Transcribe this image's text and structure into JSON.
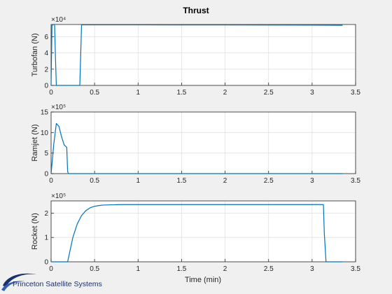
{
  "chart_data": {
    "type": "line",
    "title": "Thrust",
    "xlabel": "Time (min)",
    "colors": {
      "line": "#0072bd",
      "axes_bg": "#ffffff",
      "figure_bg": "#f0f0f0",
      "grid": "#e0e0e0"
    },
    "grid": true,
    "xlim": [
      0,
      3.5
    ],
    "xticks": [
      "0",
      "0.5",
      "1",
      "1.5",
      "2",
      "2.5",
      "3",
      "3.5"
    ],
    "subplots": [
      {
        "ylabel": "Turbofan (N)",
        "exponent_label": "×10⁴",
        "ylim": [
          0,
          7.5
        ],
        "yticks": [
          "0",
          "2",
          "4",
          "6"
        ],
        "series": [
          {
            "x": [
              0,
              0.01,
              0.02,
              0.03,
              0.04,
              0.05,
              0.06,
              0.07,
              0.33,
              0.35,
              0.5,
              1.0,
              2.0,
              3.0,
              3.35
            ],
            "y": [
              0,
              7.4,
              7.45,
              7.5,
              7.5,
              3.5,
              0,
              0,
              0,
              7.45,
              7.45,
              7.45,
              7.44,
              7.42,
              7.4
            ]
          }
        ]
      },
      {
        "ylabel": "Ramjet (N)",
        "exponent_label": "×10⁵",
        "ylim": [
          0,
          15
        ],
        "yticks": [
          "0",
          "5",
          "10",
          "15"
        ],
        "series": [
          {
            "x": [
              0,
              0.03,
              0.06,
              0.09,
              0.12,
              0.15,
              0.18,
              0.19,
              0.2,
              0.25,
              1.0,
              2.0,
              3.0,
              3.35
            ],
            "y": [
              0,
              7,
              12.2,
              11.5,
              9,
              7,
              6.4,
              0.5,
              0,
              0,
              0,
              0,
              0,
              0
            ]
          }
        ]
      },
      {
        "ylabel": "Rocket (N)",
        "exponent_label": "×10⁵",
        "ylim": [
          0,
          2.5
        ],
        "yticks": [
          "0",
          "1",
          "2"
        ],
        "series": [
          {
            "x": [
              0,
              0.19,
              0.22,
              0.25,
              0.3,
              0.35,
              0.4,
              0.45,
              0.5,
              0.55,
              0.6,
              0.7,
              0.8,
              1.0,
              2.0,
              3.0,
              3.13,
              3.14,
              3.16,
              3.35
            ],
            "y": [
              0,
              0,
              0.5,
              1.0,
              1.55,
              1.9,
              2.1,
              2.22,
              2.28,
              2.31,
              2.33,
              2.34,
              2.35,
              2.35,
              2.35,
              2.35,
              2.35,
              1.2,
              0,
              0
            ]
          }
        ]
      }
    ]
  },
  "logo": {
    "text": "Princeton Satellite Systems"
  }
}
